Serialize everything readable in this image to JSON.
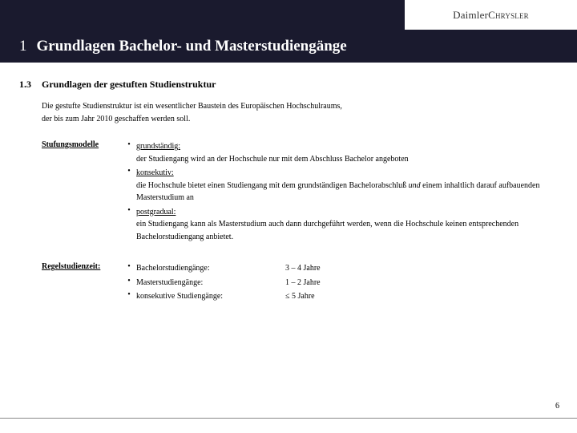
{
  "brand": {
    "part1": "Daimler",
    "part2": "Chrysler"
  },
  "header": {
    "number": "1",
    "title": "Grundlagen Bachelor- und Masterstudiengänge"
  },
  "subheading": {
    "number": "1.3",
    "title": "Grundlagen der gestuften Studienstruktur"
  },
  "intro_lines": [
    "Die gestufte Studienstruktur ist ein wesentlicher Baustein des Europäischen Hochschulraums,",
    "der bis zum Jahr 2010 geschaffen werden soll."
  ],
  "sections": {
    "models": {
      "label": "Stufungsmodelle",
      "items": [
        {
          "term": "grundständig:",
          "desc": "der Studiengang wird an der Hochschule nur mit dem Abschluss Bachelor angeboten"
        },
        {
          "term": "konsekutiv:",
          "desc_pre": "die Hochschule bietet einen Studiengang mit dem grundständigen Bachelorabschluß ",
          "desc_it": "und",
          "desc_post": " einem inhaltlich darauf aufbauenden Masterstudium an"
        },
        {
          "term": "postgradual:",
          "desc": "ein Studiengang kann als Masterstudium auch dann durchgeführt werden, wenn die Hochschule keinen entsprechenden Bachelorstudiengang anbietet."
        }
      ]
    },
    "duration": {
      "label": "Regelstudienzeit:",
      "rows": [
        {
          "name": "Bachelorstudiengänge:",
          "value": "3 – 4 Jahre"
        },
        {
          "name": "Masterstudiengänge:",
          "value": "1 – 2 Jahre"
        },
        {
          "name": "konsekutive Studiengänge:",
          "value": "≤ 5 Jahre"
        }
      ]
    }
  },
  "page_number": "6",
  "colors": {
    "banner": "#1a1a2e",
    "bg": "#ffffff",
    "text": "#000000"
  }
}
